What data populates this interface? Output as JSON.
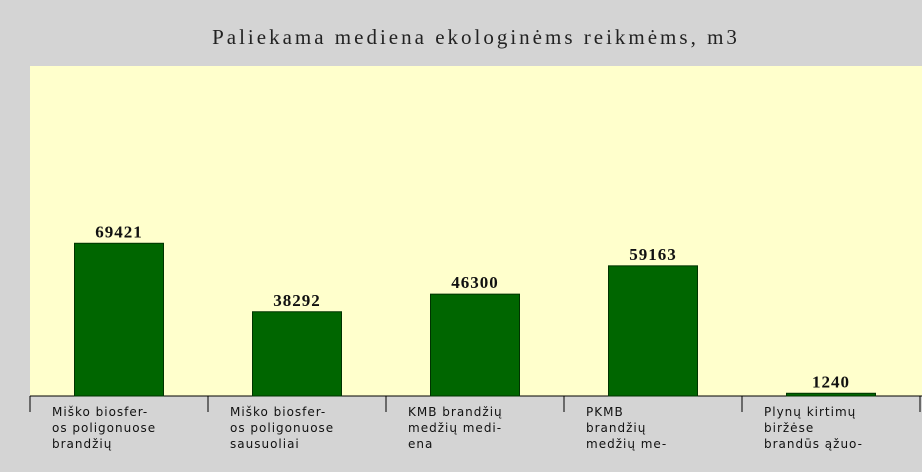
{
  "chart_data": {
    "type": "bar",
    "title": "Paliekama mediena ekologinėms reikmėms, m3",
    "categories": [
      [
        "Miško biosfer-",
        "os poligonuose",
        "brandžių"
      ],
      [
        "Miško biosfer-",
        "os poligonuose",
        "sausuoliai"
      ],
      [
        "KMB brandžių",
        "medžių medi-",
        "ena"
      ],
      [
        "PKMB",
        "brandžių",
        "medžių me-"
      ],
      [
        "Plynų kirtimų",
        "biržėse",
        "brandūs ąžuo-"
      ]
    ],
    "values": [
      69421,
      38292,
      46300,
      59163,
      1240
    ],
    "color": "#006600",
    "ylim": [
      0,
      150000
    ]
  }
}
